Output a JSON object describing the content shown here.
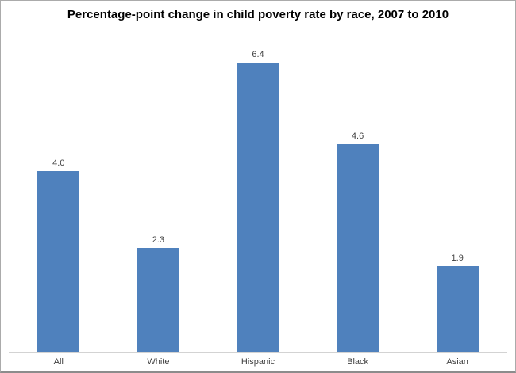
{
  "chart_data": {
    "type": "bar",
    "title": "Percentage-point change in child poverty rate by race, 2007 to 2010",
    "categories": [
      "All",
      "White",
      "Hispanic",
      "Black",
      "Asian"
    ],
    "values": [
      4.0,
      2.3,
      6.4,
      4.6,
      1.9
    ],
    "value_labels": [
      "4.0",
      "2.3",
      "6.4",
      "4.6",
      "1.9"
    ],
    "xlabel": "",
    "ylabel": "",
    "ylim": [
      0,
      6.8
    ],
    "grid": false,
    "legend": "none",
    "colors": {
      "bar": "#4f81bd",
      "label": "#404040",
      "axis_line": "#d3d3d3",
      "frame_border": "#ababab",
      "frame_border_bottom": "#8c8c8c",
      "background": "#ffffff",
      "title": "#000000"
    }
  }
}
